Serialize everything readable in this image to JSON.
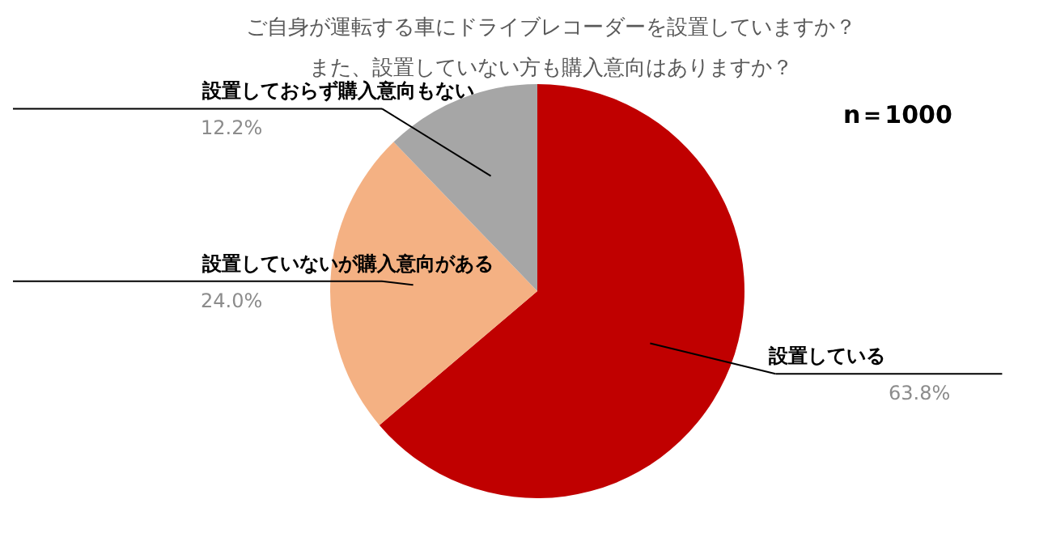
{
  "chart_data": {
    "type": "pie",
    "title": "ご自身が運転する車にドライブレコーダーを設置していますか？",
    "subtitle": "また、設置していない方も購入意向はありますか？",
    "categories": [
      "設置している",
      "設置していないが購入意向がある",
      "設置しておらず購入意向もない"
    ],
    "values": [
      63.8,
      24.0,
      12.2
    ],
    "colors": [
      "#c00000",
      "#f4b183",
      "#a6a6a6"
    ],
    "value_labels": [
      "63.8%",
      "24.0%",
      "12.2%"
    ],
    "annotations": [
      "n＝1000"
    ],
    "legend": false
  }
}
